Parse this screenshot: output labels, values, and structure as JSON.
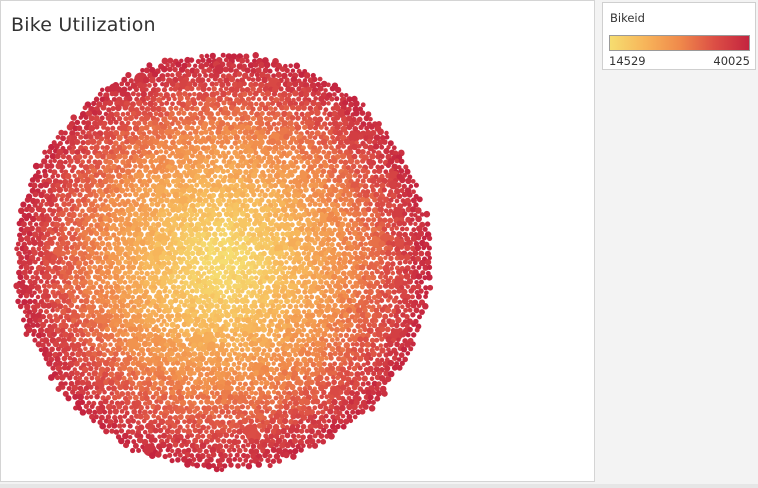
{
  "title": "Bike Utilization",
  "colors": {
    "ramp_low": "#f6dd70",
    "ramp_mid": "#f08a4b",
    "ramp_high": "#c4243f"
  },
  "legend": {
    "title": "Bikeid",
    "min_label": "14529",
    "max_label": "40025"
  },
  "chart_data": {
    "type": "packed-bubble",
    "title": "Bike Utilization",
    "color_field": "Bikeid",
    "color_range": [
      14529,
      40025
    ],
    "color_scale": "sequential yellow-orange-red"
  }
}
